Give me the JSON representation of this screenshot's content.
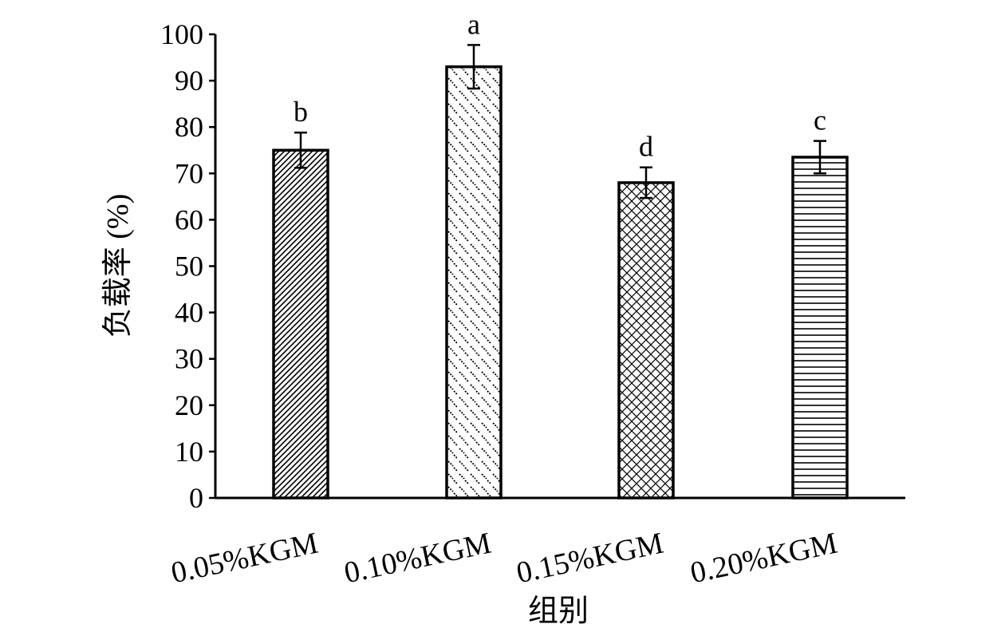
{
  "chart_data": {
    "type": "bar",
    "title": "",
    "xlabel": "组别",
    "ylabel": "负载率 (%)",
    "ylim": [
      0,
      100
    ],
    "yticks": [
      0,
      10,
      20,
      30,
      40,
      50,
      60,
      70,
      80,
      90,
      100
    ],
    "categories": [
      "0.05%KGM",
      "0.10%KGM",
      "0.15%KGM",
      "0.20%KGM"
    ],
    "values": [
      75,
      93,
      68,
      73.5
    ],
    "errors": [
      3.8,
      4.7,
      3.3,
      3.5
    ],
    "significance": [
      "b",
      "a",
      "d",
      "c"
    ],
    "patterns": [
      "diagonal-stripes",
      "dashed-diagonal",
      "crosshatch",
      "horizontal-stripes"
    ],
    "grid": false,
    "legend": "none"
  }
}
